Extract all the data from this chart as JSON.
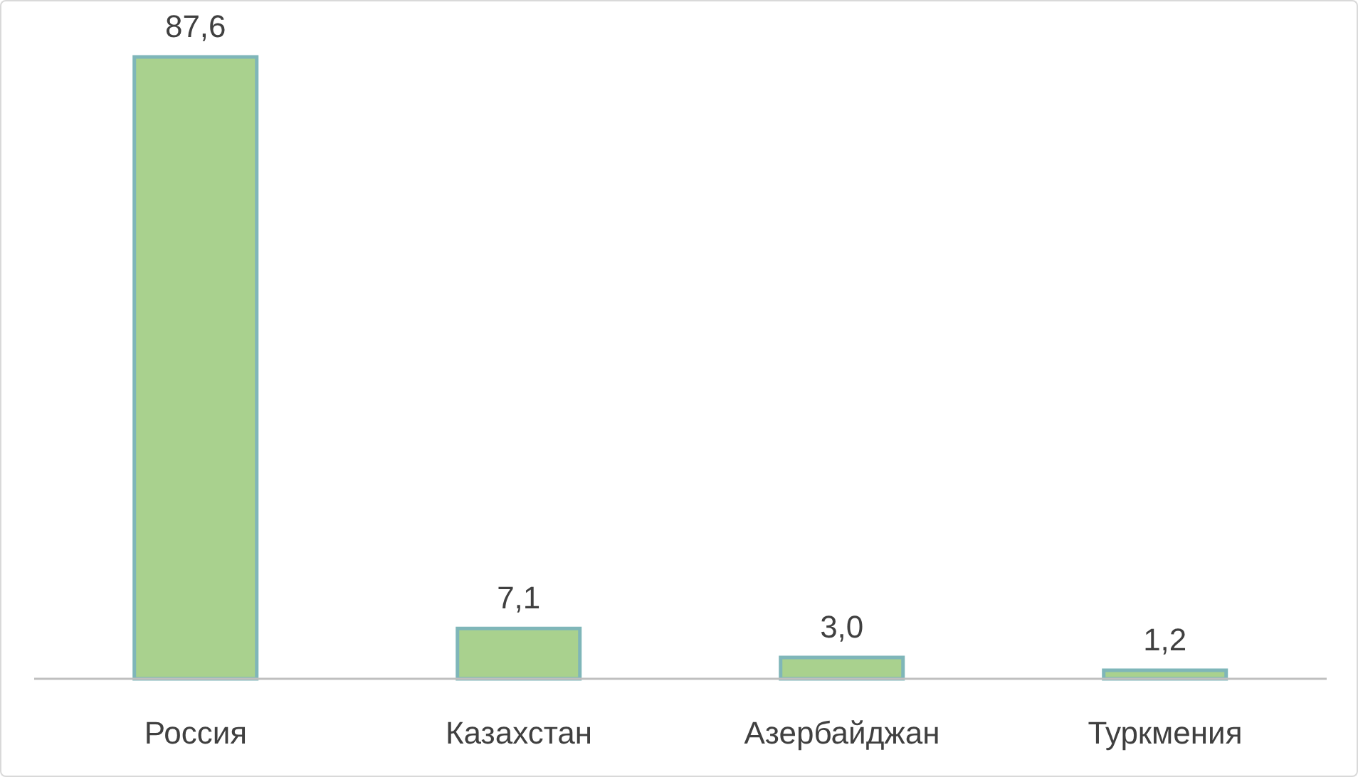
{
  "chart_data": {
    "type": "bar",
    "categories": [
      "Россия",
      "Казахстан",
      "Азербайджан",
      "Туркмения"
    ],
    "values": [
      87.6,
      7.1,
      3.0,
      1.2
    ],
    "value_labels": [
      "87,6",
      "7,1",
      "3,0",
      "1,2"
    ],
    "color": "#a9d18e",
    "grid": false,
    "legend": false
  }
}
